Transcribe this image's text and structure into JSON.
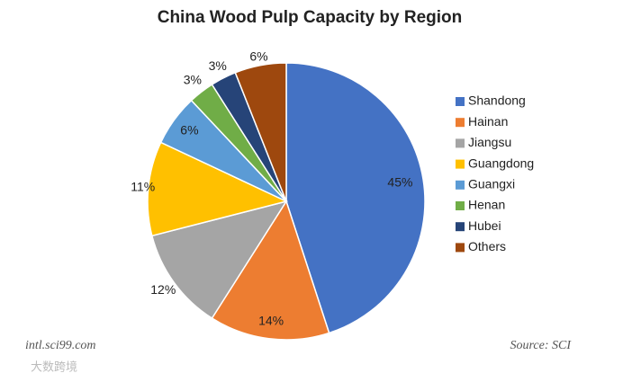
{
  "chart_data": {
    "type": "pie",
    "title": "China Wood Pulp Capacity by Region",
    "categories": [
      "Shandong",
      "Hainan",
      "Jiangsu",
      "Guangdong",
      "Guangxi",
      "Henan",
      "Hubei",
      "Others"
    ],
    "values": [
      45,
      14,
      12,
      11,
      6,
      3,
      3,
      6
    ],
    "value_labels": [
      "45%",
      "14%",
      "12%",
      "11%",
      "6%",
      "3%",
      "3%",
      "6%"
    ],
    "colors": [
      "#4472c4",
      "#ed7d31",
      "#a5a5a5",
      "#ffc000",
      "#5b9bd5",
      "#70ad47",
      "#264478",
      "#9e480e"
    ],
    "legend": "right",
    "annotations": [
      "intl.sci99.com",
      "Source: SCI",
      "大数跨境"
    ]
  }
}
